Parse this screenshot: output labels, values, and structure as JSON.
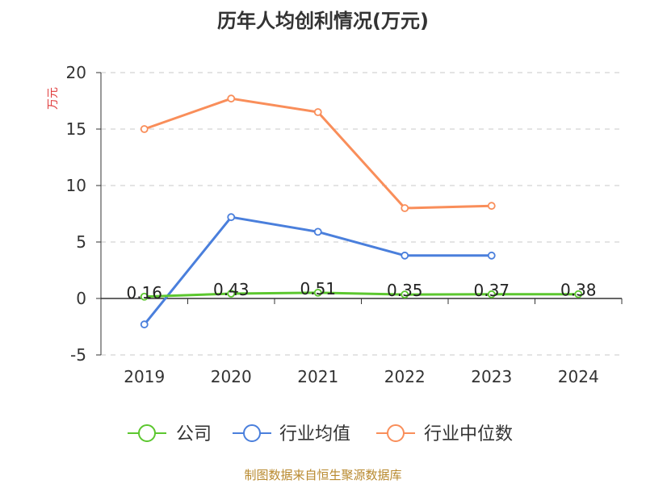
{
  "chart_data": {
    "type": "line",
    "title": "历年人均创利情况(万元)",
    "ylabel": "万元",
    "xlabel": "",
    "categories": [
      "2019",
      "2020",
      "2021",
      "2022",
      "2023",
      "2024"
    ],
    "ylim": [
      -5,
      20
    ],
    "yticks": [
      "-5",
      "0",
      "5",
      "10",
      "15",
      "20"
    ],
    "grid": true,
    "legend_position": "bottom",
    "series": [
      {
        "name": "公司",
        "color": "#5cc72f",
        "values": [
          0.16,
          0.43,
          0.51,
          0.35,
          0.37,
          0.38
        ],
        "labels": [
          "0.16",
          "0.43",
          "0.51",
          "0.35",
          "0.37",
          "0.38"
        ]
      },
      {
        "name": "行业均值",
        "color": "#4a7fdc",
        "values": [
          -2.3,
          7.2,
          5.9,
          3.8,
          3.8,
          null
        ]
      },
      {
        "name": "行业中位数",
        "color": "#f98e5a",
        "values": [
          15.0,
          17.7,
          16.5,
          8.0,
          8.2,
          null
        ]
      }
    ],
    "source": "制图数据来自恒生聚源数据库"
  }
}
